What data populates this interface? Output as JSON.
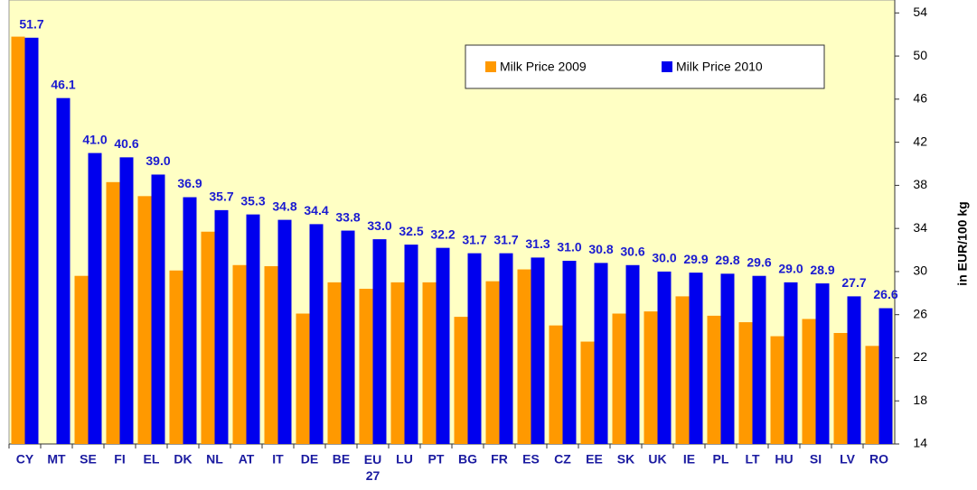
{
  "chart_data": {
    "type": "bar",
    "categories": [
      "CY",
      "MT",
      "SE",
      "FI",
      "EL",
      "DK",
      "NL",
      "AT",
      "IT",
      "DE",
      "BE",
      "EU 27",
      "LU",
      "PT",
      "BG",
      "FR",
      "ES",
      "CZ",
      "EE",
      "SK",
      "UK",
      "IE",
      "PL",
      "LT",
      "HU",
      "SI",
      "LV",
      "RO"
    ],
    "series": [
      {
        "name": "Milk Price 2009",
        "color": "#ff9900",
        "values": [
          51.8,
          null,
          29.6,
          38.3,
          37.0,
          30.1,
          33.7,
          30.6,
          30.5,
          26.1,
          29.0,
          28.4,
          29.0,
          29.0,
          25.8,
          29.1,
          30.2,
          25.0,
          23.5,
          26.1,
          26.3,
          27.7,
          25.9,
          25.3,
          24.0,
          25.6,
          24.3,
          23.1
        ]
      },
      {
        "name": "Milk Price 2010",
        "color": "#0000ee",
        "values": [
          51.7,
          46.1,
          41.0,
          40.6,
          39.0,
          36.9,
          35.7,
          35.3,
          34.8,
          34.4,
          33.8,
          33.0,
          32.5,
          32.2,
          31.7,
          31.7,
          31.3,
          31.0,
          30.8,
          30.6,
          30.0,
          29.9,
          29.8,
          29.6,
          29.0,
          28.9,
          27.7,
          26.6
        ],
        "value_labels": [
          "51.7",
          "46.1",
          "41.0",
          "40.6",
          "39.0",
          "36.9",
          "35.7",
          "35.3",
          "34.8",
          "34.4",
          "33.8",
          "33.0",
          "32.5",
          "32.2",
          "31.7",
          "31.7",
          "31.3",
          "31.0",
          "30.8",
          "30.6",
          "30.0",
          "29.9",
          "29.8",
          "29.6",
          "29.0",
          "28.9",
          "27.7",
          "26.6"
        ]
      }
    ],
    "y_label": "in EUR/100 kg",
    "ylim": [
      14,
      55.2
    ],
    "yticks": [
      14,
      18,
      22,
      26,
      30,
      34,
      38,
      42,
      46,
      50,
      54
    ],
    "grid": false,
    "legend": "top-right"
  }
}
